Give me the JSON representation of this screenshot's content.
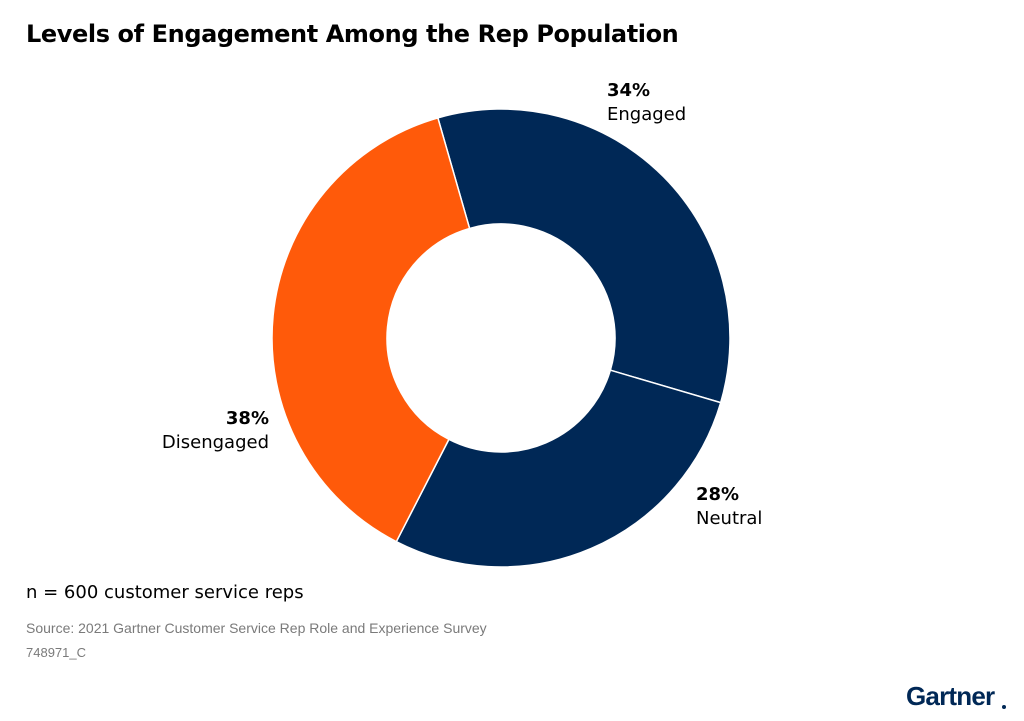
{
  "chart_data": {
    "type": "pie",
    "title": "Levels of Engagement Among the Rep Population",
    "donut": true,
    "slices": [
      {
        "label": "Engaged",
        "value": 34,
        "display": "34%",
        "color": "#002856"
      },
      {
        "label": "Neutral",
        "value": 28,
        "display": "28%",
        "color": "#002856"
      },
      {
        "label": "Disengaged",
        "value": 38,
        "display": "38%",
        "color": "#ff5a0a"
      }
    ]
  },
  "note": "n = 600 customer service reps",
  "source": "Source: 2021 Gartner Customer Service Rep Role and Experience Survey",
  "code": "748971_C",
  "logo": {
    "text": "Gartner",
    "color": "#002856"
  },
  "colors": {
    "separator": "#ffffff",
    "background": "#ffffff"
  }
}
